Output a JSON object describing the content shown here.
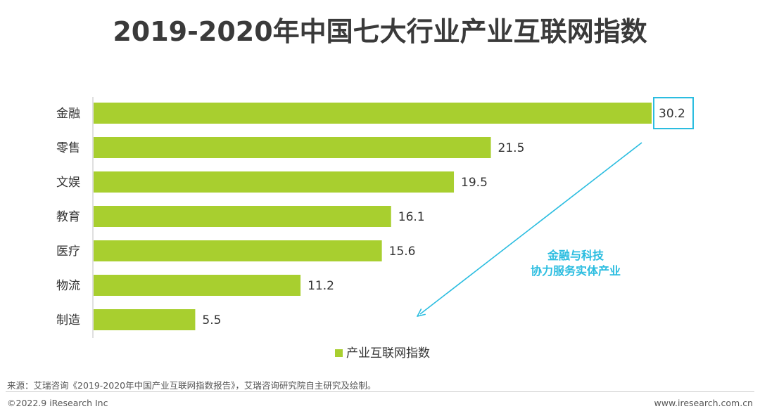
{
  "title": "2019-2020年中国七大行业产业互联网指数",
  "chart_data": {
    "type": "bar",
    "orientation": "horizontal",
    "categories": [
      "金融",
      "零售",
      "文娱",
      "教育",
      "医疗",
      "物流",
      "制造"
    ],
    "series": [
      {
        "name": "产业互联网指数",
        "values": [
          30.2,
          21.5,
          19.5,
          16.1,
          15.6,
          11.2,
          5.5
        ]
      }
    ],
    "data_labels": [
      "30.2",
      "21.5",
      "19.5",
      "16.1",
      "15.6",
      "11.2",
      "5.5"
    ],
    "xlim": [
      0,
      31.5
    ],
    "grid": false,
    "legend_position": "bottom",
    "highlighted_category": "金融",
    "annotation": {
      "line1": "金融与科技",
      "line2": "协力服务实体产业"
    }
  },
  "colors": {
    "bar": "#a8cf2f",
    "accent": "#2bbde0",
    "axis": "#bfbfbf"
  },
  "footer": {
    "source": "来源：艾瑞咨询《2019-2020年中国产业互联网指数报告》，艾瑞咨询研究院自主研究及绘制。",
    "copyright": "©2022.9 iResearch Inc",
    "website": "www.iresearch.com.cn"
  }
}
